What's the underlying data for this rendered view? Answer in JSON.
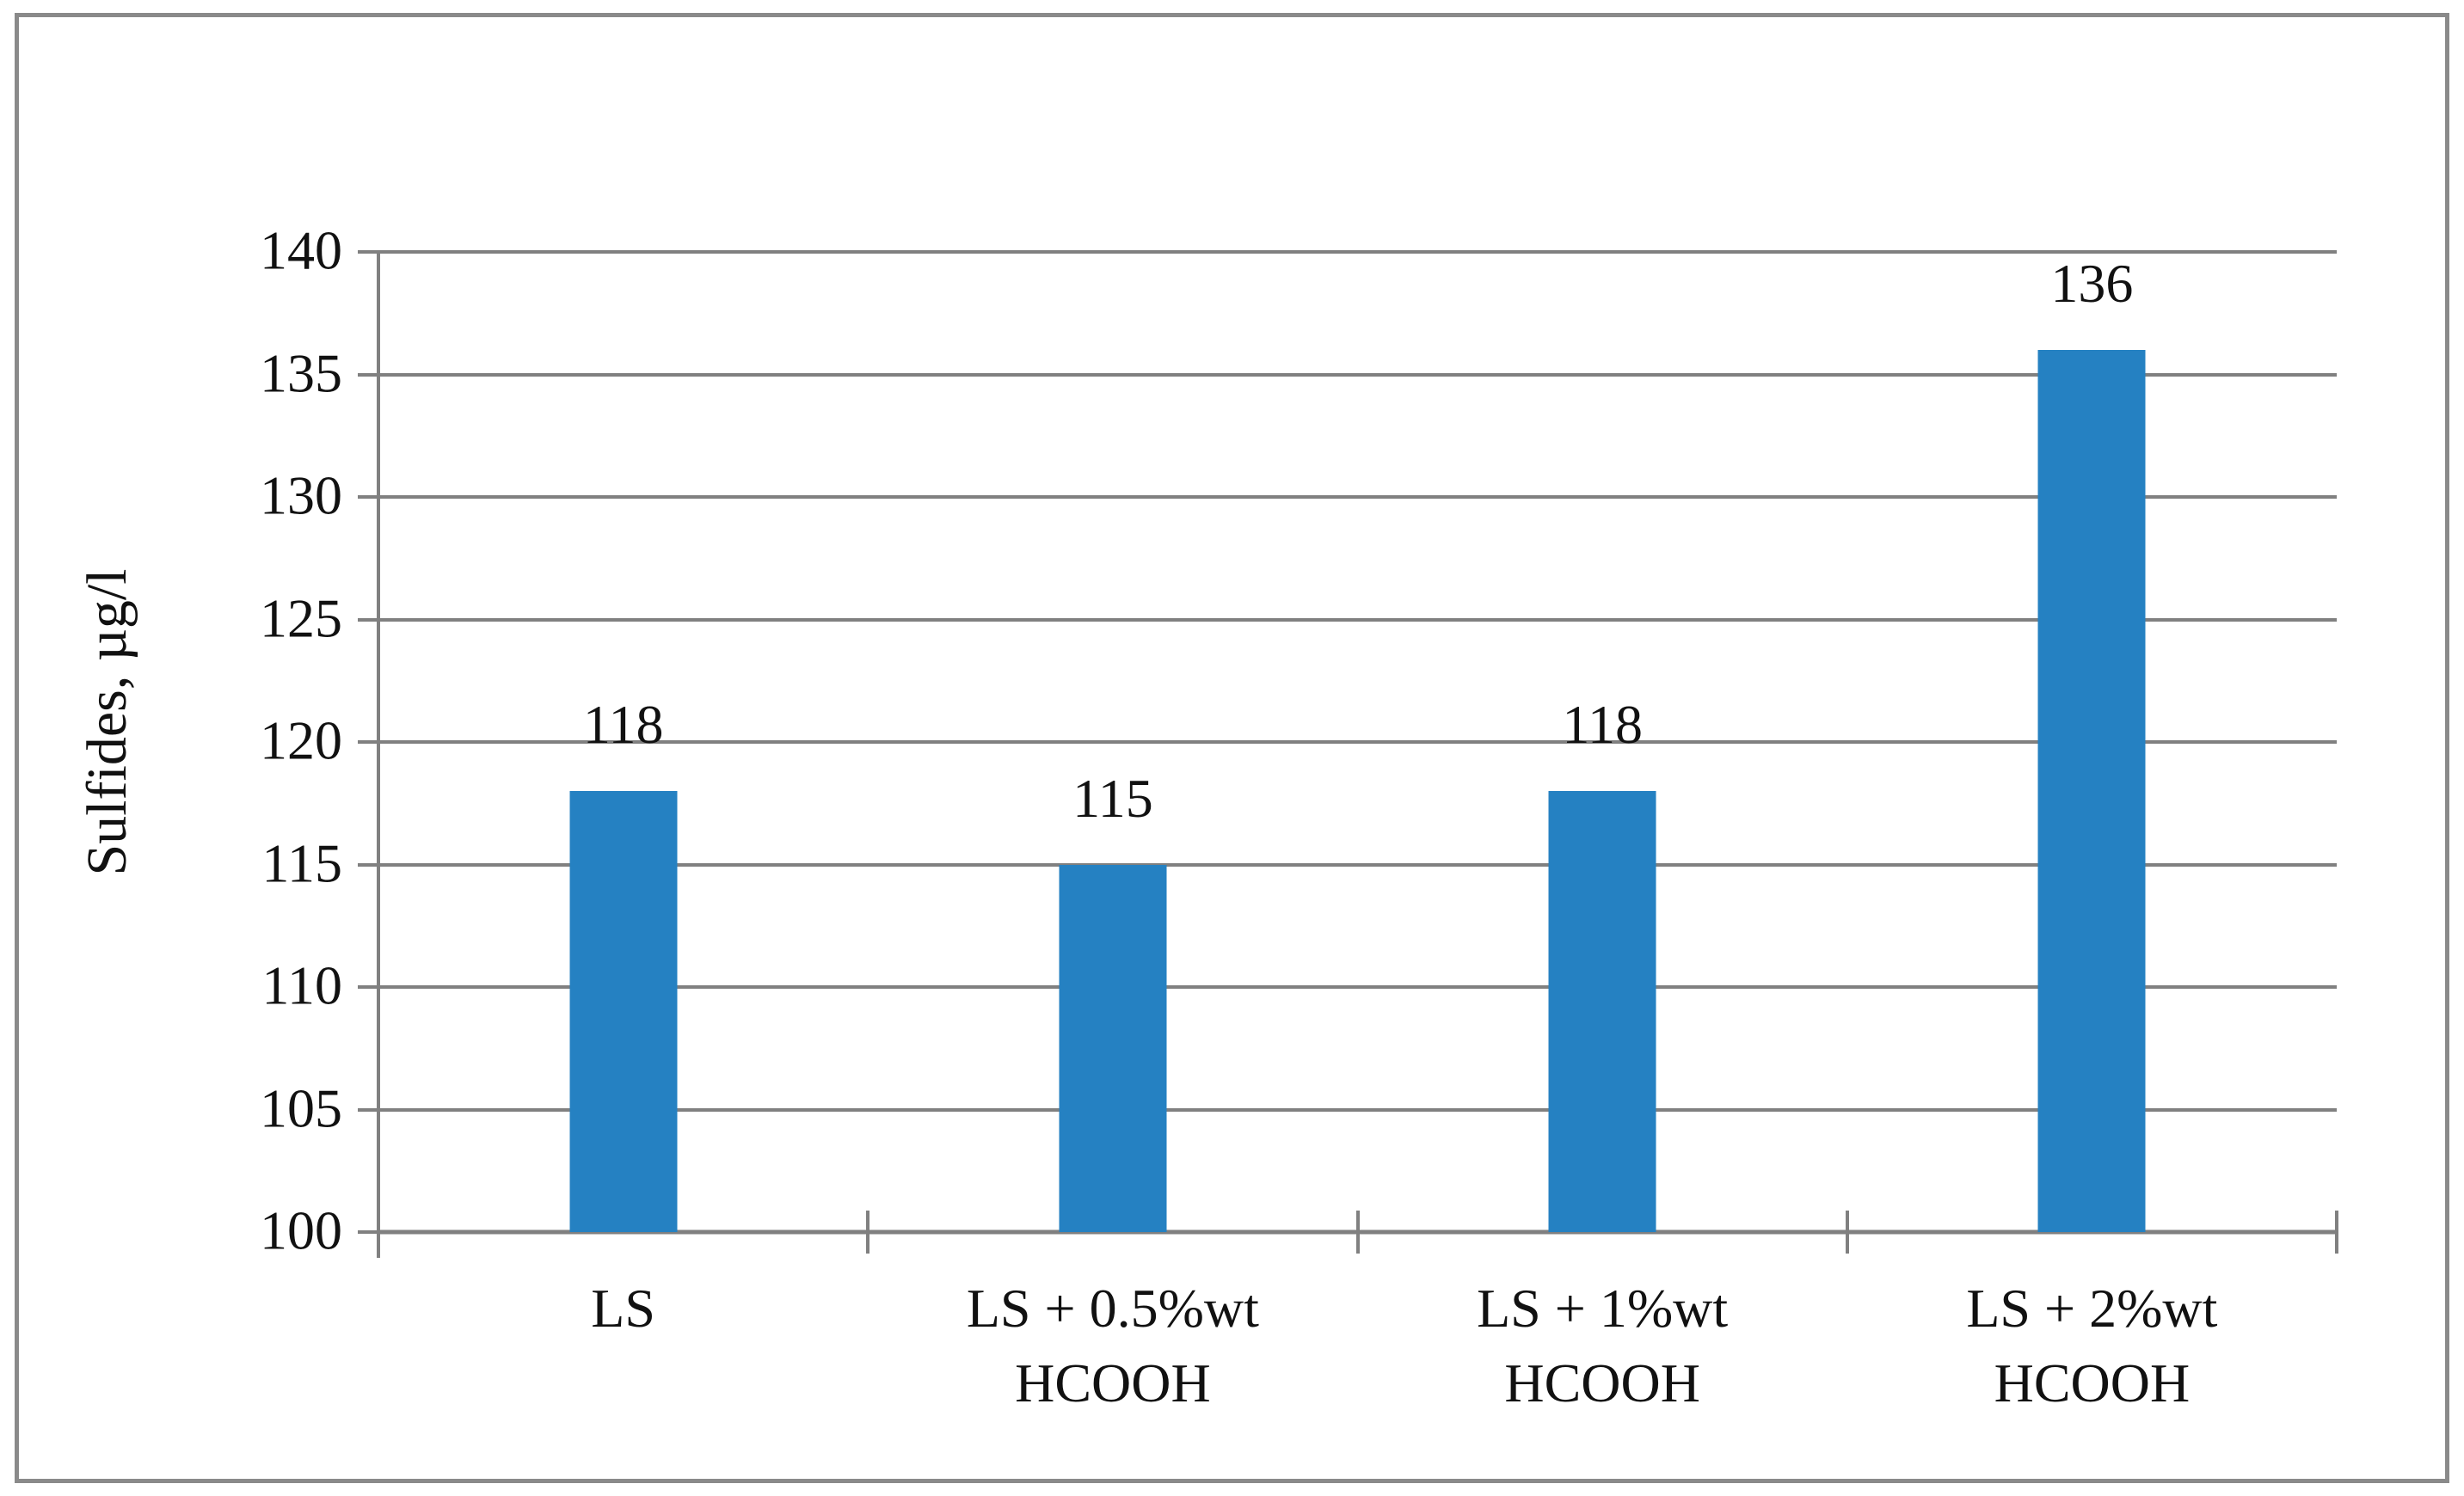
{
  "chart_data": {
    "type": "bar",
    "title": "",
    "categories": [
      "LS",
      "LS + 0.5%wt\nHCOOH",
      "LS + 1%wt\nHCOOH",
      "LS + 2%wt\nHCOOH"
    ],
    "values": [
      118,
      115,
      118,
      136
    ],
    "data_labels": [
      "118",
      "115",
      "118",
      "136"
    ],
    "xlabel": "",
    "ylabel": "Sulfides, µg/l",
    "ylim": [
      100,
      140
    ],
    "yticks": [
      100,
      105,
      110,
      115,
      120,
      125,
      130,
      135,
      140
    ],
    "ytick_labels": [
      "100",
      "105",
      "110",
      "115",
      "120",
      "125",
      "130",
      "135",
      "140"
    ],
    "grid": true,
    "legend": false,
    "colors": {
      "bar_fill": "#2581C2",
      "gridline": "#808080",
      "axis": "#808080",
      "text": "#111111",
      "frame_border": "#8a8a8a",
      "background": "#ffffff"
    }
  }
}
